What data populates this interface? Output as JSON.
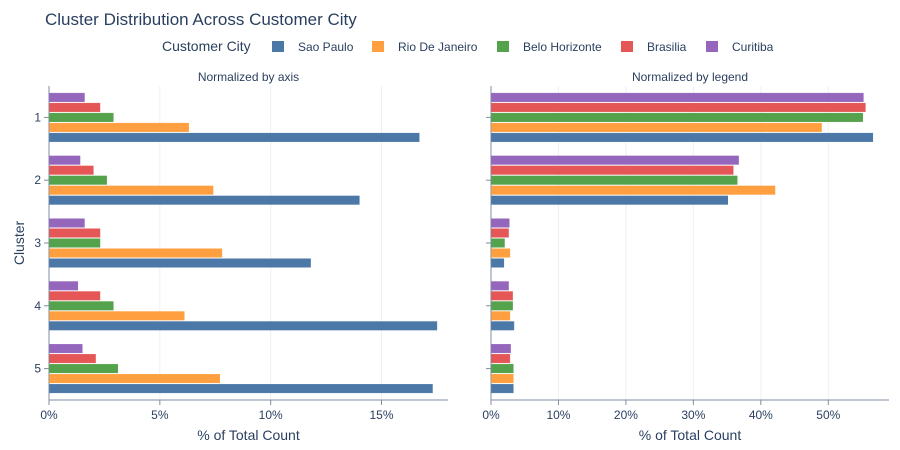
{
  "title": "Cluster Distribution Across Customer City",
  "legend": {
    "title": "Customer City",
    "items": [
      {
        "name": "Sao Paulo",
        "color": "#4c78a8"
      },
      {
        "name": "Rio De Janeiro",
        "color": "#ff9f40"
      },
      {
        "name": "Belo Horizonte",
        "color": "#54a24b"
      },
      {
        "name": "Brasilia",
        "color": "#e45756"
      },
      {
        "name": "Curitiba",
        "color": "#9467bd"
      }
    ]
  },
  "y_axis_title": "Cluster",
  "chart_data": [
    {
      "type": "bar",
      "orientation": "horizontal",
      "title": "Normalized by axis",
      "xlabel": "% of Total Count",
      "ylabel": "Cluster",
      "xlim": [
        0,
        18
      ],
      "xticks": [
        0,
        5,
        10,
        15
      ],
      "xtick_labels": [
        "0%",
        "5%",
        "10%",
        "15%"
      ],
      "categories": [
        "1",
        "2",
        "3",
        "4",
        "5"
      ],
      "series": [
        {
          "name": "Sao Paulo",
          "values": [
            16.7,
            14.0,
            11.8,
            17.5,
            17.3
          ]
        },
        {
          "name": "Rio De Janeiro",
          "values": [
            6.3,
            7.4,
            7.8,
            6.1,
            7.7
          ]
        },
        {
          "name": "Belo Horizonte",
          "values": [
            2.9,
            2.6,
            2.3,
            2.9,
            3.1
          ]
        },
        {
          "name": "Brasilia",
          "values": [
            2.3,
            2.0,
            2.3,
            2.3,
            2.1
          ]
        },
        {
          "name": "Curitiba",
          "values": [
            1.6,
            1.4,
            1.6,
            1.3,
            1.5
          ]
        }
      ]
    },
    {
      "type": "bar",
      "orientation": "horizontal",
      "title": "Normalized by legend",
      "xlabel": "% of Total Count",
      "ylabel": "",
      "xlim": [
        0,
        59
      ],
      "xticks": [
        0,
        10,
        20,
        30,
        40,
        50
      ],
      "xtick_labels": [
        "0%",
        "10%",
        "20%",
        "30%",
        "40%",
        "50%"
      ],
      "categories": [
        "1",
        "2",
        "3",
        "4",
        "5"
      ],
      "series": [
        {
          "name": "Sao Paulo",
          "values": [
            56.6,
            35.1,
            1.9,
            3.4,
            3.3
          ]
        },
        {
          "name": "Rio De Janeiro",
          "values": [
            49.0,
            42.1,
            2.8,
            2.8,
            3.3
          ]
        },
        {
          "name": "Belo Horizonte",
          "values": [
            55.1,
            36.5,
            2.0,
            3.2,
            3.3
          ]
        },
        {
          "name": "Brasilia",
          "values": [
            55.5,
            35.9,
            2.6,
            3.2,
            2.8
          ]
        },
        {
          "name": "Curitiba",
          "values": [
            55.2,
            36.7,
            2.7,
            2.6,
            2.9
          ]
        }
      ]
    }
  ]
}
